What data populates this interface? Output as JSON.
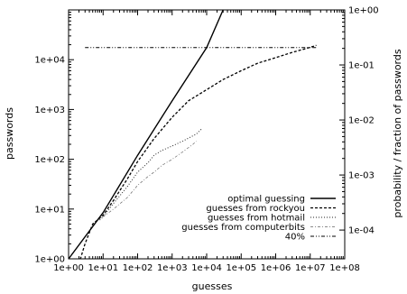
{
  "chart_data": {
    "type": "line",
    "xlabel": "guesses",
    "ylabel": "passwords",
    "y2label": "probability / fraction of passwords",
    "xscale": "log",
    "yscale": "log",
    "y2scale": "log",
    "xlim": [
      1,
      100000000
    ],
    "ylim": [
      1,
      100000
    ],
    "y2lim": [
      3e-05,
      1
    ],
    "grid": false,
    "legend_position": "bottom-right",
    "x_ticks": [
      1,
      10,
      100,
      1000,
      10000,
      100000,
      1000000,
      10000000,
      100000000
    ],
    "x_tick_labels": [
      "1e+00",
      "1e+01",
      "1e+02",
      "1e+03",
      "1e+04",
      "1e+05",
      "1e+06",
      "1e+07",
      "1e+08"
    ],
    "y_ticks": [
      1,
      10,
      100,
      1000,
      10000
    ],
    "y_tick_labels": [
      "1e+00",
      "1e+01",
      "1e+02",
      "1e+03",
      "1e+04"
    ],
    "y2_ticks": [
      1,
      0.1,
      0.01,
      0.001,
      0.0001
    ],
    "y2_tick_labels": [
      "1e+00",
      "1e-01",
      "1e-02",
      "1e-03",
      "1e-04"
    ],
    "series": [
      {
        "name": "optimal guessing",
        "style": "solid",
        "points": [
          [
            1,
            1
          ],
          [
            10,
            8.5
          ],
          [
            100,
            120
          ],
          [
            1000,
            1500
          ],
          [
            10000,
            17500
          ],
          [
            30000,
            100000
          ]
        ]
      },
      {
        "name": "guesses from rockyou",
        "style": "dashed",
        "points": [
          [
            2,
            0.8
          ],
          [
            3,
            2
          ],
          [
            5,
            5
          ],
          [
            10,
            7.5
          ],
          [
            20,
            15
          ],
          [
            50,
            40
          ],
          [
            100,
            90
          ],
          [
            300,
            260
          ],
          [
            1000,
            700
          ],
          [
            3000,
            1500
          ],
          [
            10000,
            2500
          ],
          [
            30000,
            4000
          ],
          [
            100000,
            6000
          ],
          [
            300000,
            8500
          ],
          [
            1000000,
            11000
          ],
          [
            3000000,
            14000
          ],
          [
            7000000,
            16500
          ],
          [
            12000000,
            18500
          ],
          [
            15000000,
            19500
          ]
        ]
      },
      {
        "name": "guesses from hotmail",
        "style": "dotted",
        "points": [
          [
            8,
            6
          ],
          [
            10,
            7
          ],
          [
            20,
            13
          ],
          [
            50,
            28
          ],
          [
            100,
            55
          ],
          [
            200,
            85
          ],
          [
            300,
            120
          ],
          [
            500,
            150
          ],
          [
            1000,
            185
          ],
          [
            2000,
            230
          ],
          [
            5000,
            320
          ],
          [
            7500,
            420
          ]
        ]
      },
      {
        "name": "guesses from computerbits",
        "style": "dashdot",
        "points": [
          [
            10,
            7
          ],
          [
            20,
            10
          ],
          [
            50,
            17
          ],
          [
            100,
            30
          ],
          [
            200,
            45
          ],
          [
            300,
            55
          ],
          [
            500,
            75
          ],
          [
            1000,
            100
          ],
          [
            2000,
            140
          ],
          [
            4000,
            200
          ],
          [
            5000,
            230
          ]
        ]
      },
      {
        "name": "40%",
        "style": "dash-dot-dot",
        "points": [
          [
            3,
            17500
          ],
          [
            15000000,
            17500
          ]
        ]
      }
    ]
  }
}
